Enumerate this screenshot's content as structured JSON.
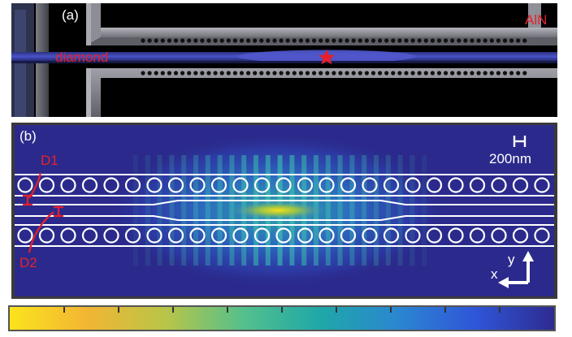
{
  "panel_a": {
    "label": "(a)",
    "diamond_label": "diamond",
    "aln_label": "AlN",
    "colors": {
      "background": "#000000",
      "aln_frame": "#8a8b93",
      "waveguide": "#3a43b0",
      "marker": "#e8202a"
    }
  },
  "panel_b": {
    "label": "(b)",
    "scale_bar_label": "200nm",
    "d1_label": "D1",
    "d2_label": "D2",
    "axis_x": "x",
    "axis_y": "y",
    "colors": {
      "field_background": "#2b2a8c",
      "hole_outline": "#ffffff",
      "annotation": "#e8202a"
    }
  },
  "colorbar": {
    "stops": [
      "#fbe31c",
      "#f2b534",
      "#b8c548",
      "#54c08c",
      "#1fa7a8",
      "#2b86d1",
      "#2f55d8",
      "#2e2b8f"
    ]
  }
}
